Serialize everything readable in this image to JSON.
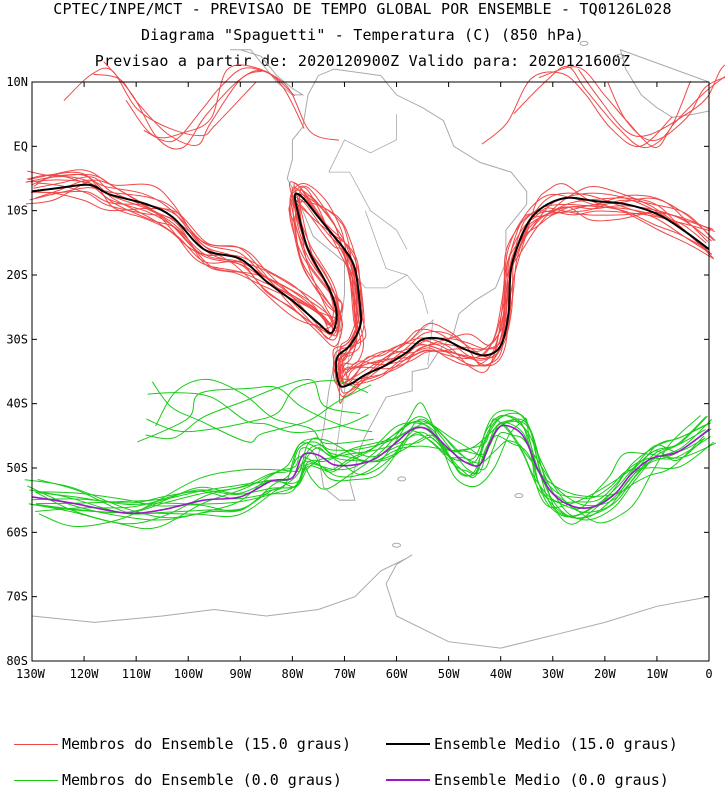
{
  "title_lines": [
    "CPTEC/INPE/MCT - PREVISAO DE TEMPO GLOBAL POR ENSEMBLE - TQ0126L028",
    "Diagrama \"Spaguetti\" - Temperatura (C) (850 hPa)",
    "Previsao a partir de: 2020120900Z  Valido para: 2020121600Z"
  ],
  "map": {
    "lat_labels": [
      "10N",
      "EQ",
      "10S",
      "20S",
      "30S",
      "40S",
      "50S",
      "60S",
      "70S",
      "80S"
    ],
    "lon_labels": [
      "130W",
      "120W",
      "110W",
      "100W",
      "90W",
      "80W",
      "70W",
      "60W",
      "50W",
      "40W",
      "30W",
      "20W",
      "10W",
      "0"
    ],
    "colors": {
      "members_15": "#f04848",
      "mean_15": "#000000",
      "members_0": "#18cc18",
      "mean_0": "#9a18c8",
      "land": "#aaaaaa"
    },
    "contours": {
      "mean_15": [
        [
          -130,
          -7
        ],
        [
          -125,
          -6.5
        ],
        [
          -119,
          -6
        ],
        [
          -115,
          -7.5
        ],
        [
          -108,
          -9
        ],
        [
          -103,
          -11
        ],
        [
          -97,
          -16
        ],
        [
          -90,
          -17.5
        ],
        [
          -85,
          -21
        ],
        [
          -80,
          -24
        ],
        [
          -75,
          -27.5
        ],
        [
          -72.5,
          -29
        ],
        [
          -71.5,
          -26
        ],
        [
          -73,
          -22
        ],
        [
          -77,
          -16
        ],
        [
          -79,
          -10
        ],
        [
          -79.5,
          -7.5
        ],
        [
          -78,
          -8
        ],
        [
          -75,
          -11
        ],
        [
          -72,
          -14
        ],
        [
          -70,
          -16
        ],
        [
          -68,
          -19
        ],
        [
          -67,
          -25
        ],
        [
          -67,
          -28
        ],
        [
          -69,
          -31
        ],
        [
          -71.5,
          -33
        ],
        [
          -71,
          -37
        ],
        [
          -69,
          -37
        ],
        [
          -66,
          -35.5
        ],
        [
          -62,
          -34
        ],
        [
          -58,
          -32
        ],
        [
          -55,
          -30
        ],
        [
          -51,
          -30
        ],
        [
          -47,
          -31.5
        ],
        [
          -43,
          -32.5
        ],
        [
          -40,
          -31
        ],
        [
          -38.5,
          -26
        ],
        [
          -38,
          -19
        ],
        [
          -36,
          -14
        ],
        [
          -34,
          -11
        ],
        [
          -31,
          -9
        ],
        [
          -27,
          -8
        ],
        [
          -22,
          -8.5
        ],
        [
          -16,
          -9
        ],
        [
          -10,
          -10.5
        ],
        [
          -5,
          -13
        ],
        [
          0,
          -16
        ]
      ],
      "mean_0": [
        [
          -130,
          -54.5
        ],
        [
          -122,
          -55.5
        ],
        [
          -112,
          -57
        ],
        [
          -105,
          -56.5
        ],
        [
          -97,
          -55
        ],
        [
          -90,
          -54.5
        ],
        [
          -84,
          -52
        ],
        [
          -80,
          -51.5
        ],
        [
          -78,
          -48
        ],
        [
          -75,
          -48
        ],
        [
          -72,
          -49.5
        ],
        [
          -68,
          -49.5
        ],
        [
          -64,
          -48.5
        ],
        [
          -60,
          -46
        ],
        [
          -57,
          -44
        ],
        [
          -54,
          -44
        ],
        [
          -50,
          -47
        ],
        [
          -47,
          -49
        ],
        [
          -44,
          -49.5
        ],
        [
          -42,
          -46
        ],
        [
          -40,
          -43.5
        ],
        [
          -37,
          -44
        ],
        [
          -35,
          -46
        ],
        [
          -33,
          -50
        ],
        [
          -30,
          -54
        ],
        [
          -26,
          -56
        ],
        [
          -22,
          -56
        ],
        [
          -18,
          -54
        ],
        [
          -15,
          -51
        ],
        [
          -11,
          -48.5
        ],
        [
          -6,
          -47.5
        ],
        [
          0,
          -44
        ]
      ]
    },
    "land": {
      "south_america": [
        [
          -77,
          8
        ],
        [
          -75,
          11
        ],
        [
          -72,
          12
        ],
        [
          -63,
          11
        ],
        [
          -60,
          8
        ],
        [
          -55,
          6
        ],
        [
          -51,
          4
        ],
        [
          -49,
          0
        ],
        [
          -44,
          -2.5
        ],
        [
          -38,
          -4
        ],
        [
          -35,
          -7
        ],
        [
          -35,
          -9
        ],
        [
          -39,
          -13
        ],
        [
          -39,
          -18
        ],
        [
          -41,
          -22
        ],
        [
          -45,
          -24
        ],
        [
          -48,
          -26
        ],
        [
          -49,
          -29
        ],
        [
          -52,
          -32
        ],
        [
          -54,
          -34.5
        ],
        [
          -57,
          -35
        ],
        [
          -57,
          -38
        ],
        [
          -62,
          -39
        ],
        [
          -64,
          -42
        ],
        [
          -66,
          -45
        ],
        [
          -67,
          -47
        ],
        [
          -68,
          -50
        ],
        [
          -69,
          -52
        ],
        [
          -68,
          -55
        ],
        [
          -71,
          -55
        ],
        [
          -74,
          -53
        ],
        [
          -75,
          -48
        ],
        [
          -74,
          -44
        ],
        [
          -73,
          -38
        ],
        [
          -71,
          -30
        ],
        [
          -70,
          -23
        ],
        [
          -70,
          -18
        ],
        [
          -76,
          -14
        ],
        [
          -79,
          -8
        ],
        [
          -81,
          -5
        ],
        [
          -80,
          -2
        ],
        [
          -80,
          1
        ],
        [
          -78,
          3
        ],
        [
          -77,
          8
        ]
      ],
      "africa": [
        [
          -17,
          15
        ],
        [
          -16,
          12
        ],
        [
          -13,
          8
        ],
        [
          -10,
          6
        ],
        [
          -7,
          4.5
        ],
        [
          -3,
          5
        ],
        [
          0,
          5.5
        ],
        [
          0,
          10
        ],
        [
          -17,
          15
        ]
      ],
      "central_america": [
        [
          -92,
          15
        ],
        [
          -88,
          15
        ],
        [
          -85,
          12
        ],
        [
          -83,
          10
        ],
        [
          -80,
          8
        ],
        [
          -78,
          8
        ],
        [
          -80,
          9
        ],
        [
          -83,
          11
        ],
        [
          -86,
          14
        ],
        [
          -90,
          15
        ],
        [
          -92,
          15
        ]
      ],
      "antarctica": [
        [
          -130,
          -73
        ],
        [
          -118,
          -74
        ],
        [
          -105,
          -73
        ],
        [
          -95,
          -72
        ],
        [
          -85,
          -73
        ],
        [
          -75,
          -72
        ],
        [
          -68,
          -70
        ],
        [
          -63,
          -66
        ],
        [
          -58,
          -64
        ],
        [
          -57,
          -63.5
        ],
        [
          -60,
          -65
        ],
        [
          -62,
          -68
        ],
        [
          -60,
          -73
        ],
        [
          -50,
          -77
        ],
        [
          -40,
          -78
        ],
        [
          -30,
          -76
        ],
        [
          -20,
          -74
        ],
        [
          -10,
          -71.5
        ],
        [
          0,
          -70
        ]
      ]
    }
  },
  "legend": [
    {
      "label": "Membros do Ensemble (15.0 graus)",
      "color": "#f04848",
      "width": 1
    },
    {
      "label": "Ensemble Medio (15.0 graus)",
      "color": "#000000",
      "width": 2
    },
    {
      "label": "Membros do Ensemble (0.0 graus)",
      "color": "#18cc18",
      "width": 1
    },
    {
      "label": "Ensemble Medio (0.0 graus)",
      "color": "#9a18c8",
      "width": 2
    }
  ]
}
